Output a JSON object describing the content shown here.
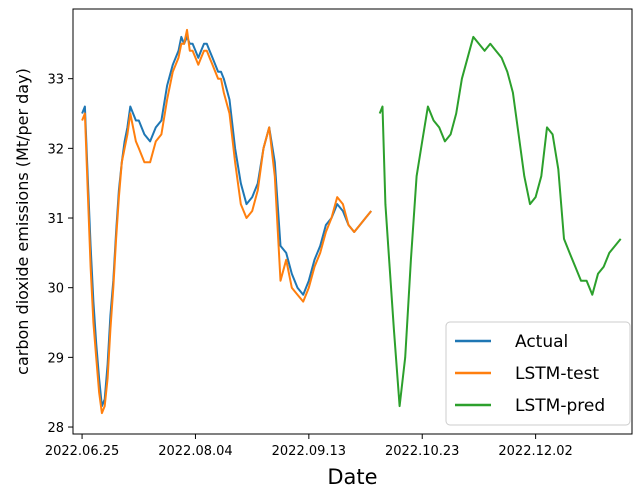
{
  "chart_data": {
    "type": "line",
    "xlabel": "Date",
    "ylabel": "carbon dioxide emissions (Mt/per day)",
    "x_ticks": [
      "2022.06.25",
      "2022.08.04",
      "2022.09.13",
      "2022.10.23",
      "2022.12.02"
    ],
    "x_tick_days": [
      0,
      40,
      80,
      120,
      160
    ],
    "ylim": [
      27.9,
      34.0
    ],
    "xlim": [
      -3.2,
      194
    ],
    "y_ticks": [
      28,
      29,
      30,
      31,
      32,
      33
    ],
    "grid": false,
    "legend_position": "bottom-right",
    "series": [
      {
        "name": "Actual",
        "color": "#1f77b4",
        "x": [
          0,
          1,
          2,
          3,
          4,
          5,
          6,
          7,
          8,
          9,
          10,
          11,
          12,
          13,
          14,
          15,
          16,
          17,
          18,
          19,
          20,
          22,
          24,
          26,
          28,
          30,
          32,
          34,
          35,
          36,
          37,
          38,
          39,
          40,
          41,
          42,
          43,
          44,
          45,
          46,
          47,
          48,
          49,
          50,
          52,
          54,
          56,
          58,
          60,
          62,
          64,
          66,
          68,
          70,
          72,
          74,
          76,
          78,
          80,
          82,
          84,
          86,
          88,
          90,
          92,
          94,
          96,
          98,
          100,
          102
        ],
        "values": [
          32.5,
          32.6,
          31.6,
          30.6,
          29.8,
          29.2,
          28.7,
          28.3,
          28.4,
          28.9,
          29.6,
          30.1,
          30.8,
          31.4,
          31.8,
          32.1,
          32.3,
          32.6,
          32.5,
          32.4,
          32.4,
          32.2,
          32.1,
          32.3,
          32.4,
          32.9,
          33.2,
          33.4,
          33.6,
          33.5,
          33.6,
          33.5,
          33.5,
          33.4,
          33.3,
          33.4,
          33.5,
          33.5,
          33.4,
          33.3,
          33.2,
          33.1,
          33.1,
          33.0,
          32.7,
          32.0,
          31.5,
          31.2,
          31.3,
          31.5,
          32.0,
          32.3,
          31.8,
          30.6,
          30.5,
          30.2,
          30.0,
          29.9,
          30.1,
          30.4,
          30.6,
          30.9,
          31.0,
          31.2,
          31.1,
          30.9,
          30.8,
          30.9,
          31.0,
          31.1
        ]
      },
      {
        "name": "LSTM-test",
        "color": "#ff7f0e",
        "x": [
          0,
          1,
          2,
          3,
          4,
          5,
          6,
          7,
          8,
          9,
          10,
          11,
          12,
          13,
          14,
          15,
          16,
          17,
          18,
          19,
          20,
          22,
          24,
          26,
          28,
          30,
          32,
          34,
          35,
          36,
          37,
          38,
          39,
          40,
          41,
          42,
          43,
          44,
          45,
          46,
          47,
          48,
          49,
          50,
          52,
          54,
          56,
          58,
          60,
          62,
          64,
          66,
          68,
          70,
          72,
          74,
          76,
          78,
          80,
          82,
          84,
          86,
          88,
          90,
          92,
          94,
          96,
          98,
          100,
          102
        ],
        "values": [
          32.4,
          32.5,
          31.4,
          30.3,
          29.5,
          29.0,
          28.5,
          28.2,
          28.3,
          28.7,
          29.4,
          30.0,
          30.7,
          31.3,
          31.8,
          32.0,
          32.2,
          32.5,
          32.3,
          32.1,
          32.0,
          31.8,
          31.8,
          32.1,
          32.2,
          32.7,
          33.1,
          33.3,
          33.5,
          33.5,
          33.7,
          33.4,
          33.4,
          33.3,
          33.2,
          33.3,
          33.4,
          33.4,
          33.3,
          33.2,
          33.1,
          33.0,
          33.0,
          32.8,
          32.5,
          31.8,
          31.2,
          31.0,
          31.1,
          31.4,
          32.0,
          32.3,
          31.6,
          30.1,
          30.4,
          30.0,
          29.9,
          29.8,
          30.0,
          30.3,
          30.5,
          30.8,
          31.0,
          31.3,
          31.2,
          30.9,
          30.8,
          30.9,
          31.0,
          31.1
        ]
      },
      {
        "name": "LSTM-pred",
        "color": "#2ca02c",
        "x": [
          105,
          106,
          107,
          108,
          110,
          112,
          114,
          116,
          118,
          120,
          122,
          124,
          126,
          128,
          130,
          132,
          134,
          136,
          138,
          140,
          142,
          144,
          146,
          148,
          150,
          152,
          154,
          156,
          158,
          160,
          162,
          164,
          166,
          168,
          170,
          172,
          174,
          176,
          178,
          180,
          182,
          184,
          186,
          188,
          190
        ],
        "values": [
          32.5,
          32.6,
          31.2,
          30.6,
          29.4,
          28.3,
          29.0,
          30.4,
          31.6,
          32.1,
          32.6,
          32.4,
          32.3,
          32.1,
          32.2,
          32.5,
          33.0,
          33.3,
          33.6,
          33.5,
          33.4,
          33.5,
          33.4,
          33.3,
          33.1,
          32.8,
          32.2,
          31.6,
          31.2,
          31.3,
          31.6,
          32.3,
          32.2,
          31.7,
          30.7,
          30.5,
          30.3,
          30.1,
          30.1,
          29.9,
          30.2,
          30.3,
          30.5,
          30.6,
          30.7
        ]
      }
    ]
  }
}
